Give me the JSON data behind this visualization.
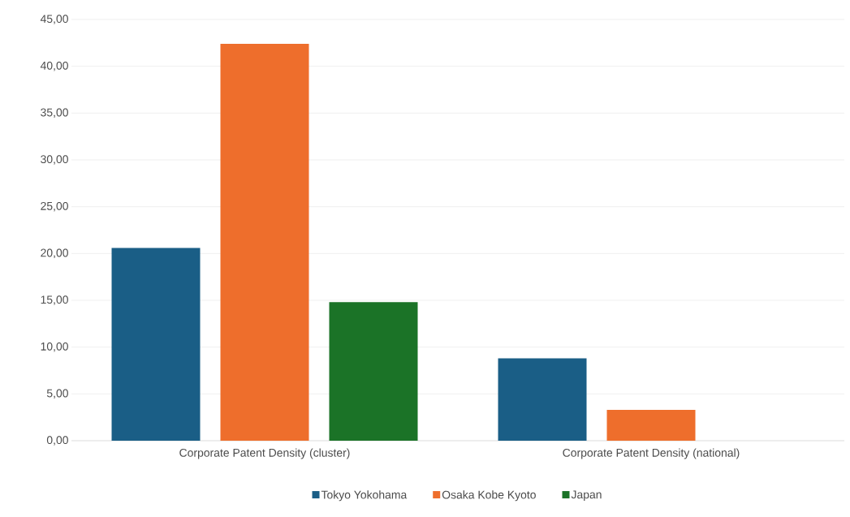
{
  "chart_data": {
    "type": "bar",
    "categories": [
      "Corporate Patent Density (cluster)",
      "Corporate Patent Density (national)"
    ],
    "series": [
      {
        "name": "Tokyo Yokohama",
        "color": "#1a5e86",
        "values": [
          20.6,
          8.8
        ]
      },
      {
        "name": "Osaka Kobe Kyoto",
        "color": "#ee6e2c",
        "values": [
          42.4,
          3.3
        ]
      },
      {
        "name": "Japan",
        "color": "#1b7327",
        "values": [
          14.8,
          null
        ]
      }
    ],
    "ylim": [
      0,
      45
    ],
    "yticks": [
      {
        "value": 0,
        "label": "0,00"
      },
      {
        "value": 5,
        "label": "5,00"
      },
      {
        "value": 10,
        "label": "10,00"
      },
      {
        "value": 15,
        "label": "15,00"
      },
      {
        "value": 20,
        "label": "20,00"
      },
      {
        "value": 25,
        "label": "25,00"
      },
      {
        "value": 30,
        "label": "30,00"
      },
      {
        "value": 35,
        "label": "35,00"
      },
      {
        "value": 40,
        "label": "40,00"
      },
      {
        "value": 45,
        "label": "45,00"
      }
    ],
    "grid": "y",
    "legend": "bottom"
  }
}
